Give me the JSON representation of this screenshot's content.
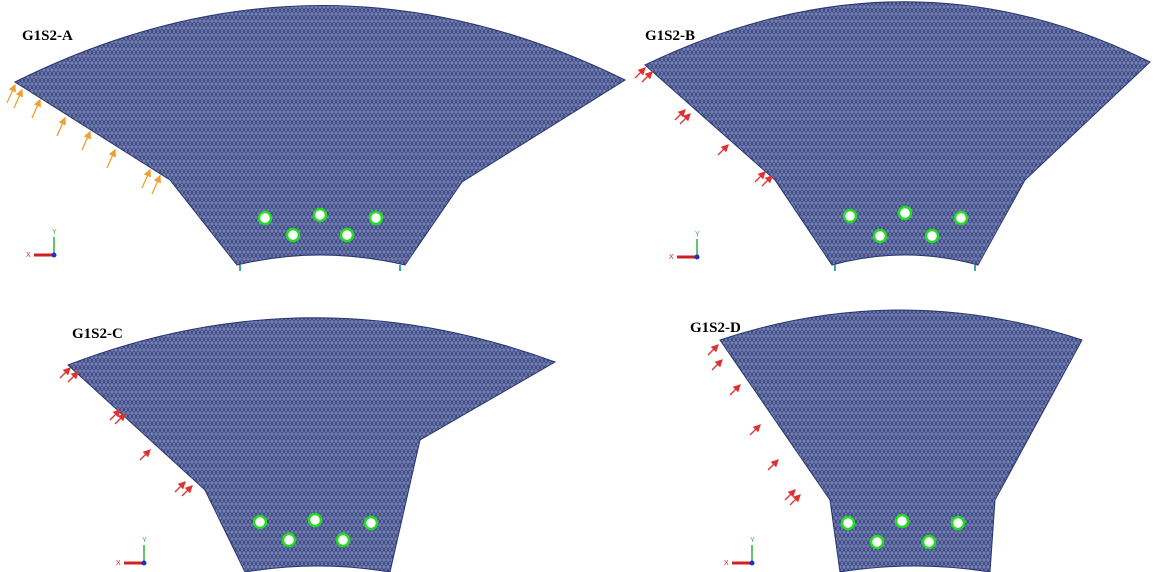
{
  "panels": [
    {
      "label": "G1S2-A",
      "axis_y": "Y",
      "axis_x": "X"
    },
    {
      "label": "G1S2-B",
      "axis_y": "Y",
      "axis_x": "X"
    },
    {
      "label": "G1S2-C",
      "axis_y": "Y",
      "axis_x": "X"
    },
    {
      "label": "G1S2-D",
      "axis_y": "Y",
      "axis_x": "X"
    }
  ]
}
